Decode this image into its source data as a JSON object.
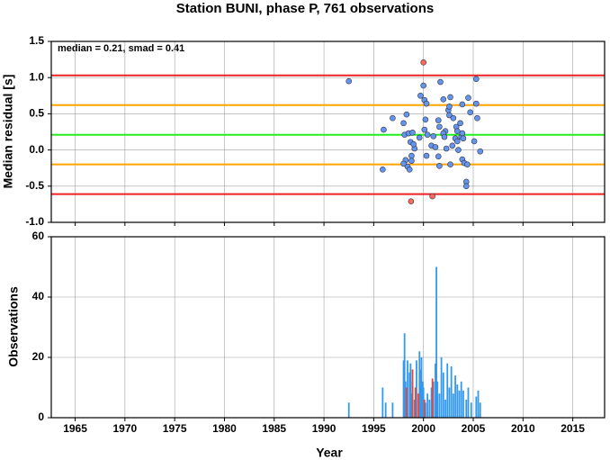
{
  "chart_data": [
    {
      "type": "scatter",
      "title": "Station BUNI, phase P, 761 observations",
      "ylabel": "Median residual [s]",
      "annotation": "median = 0.21, smad = 0.41",
      "xlim": [
        1962.6,
        2018.2
      ],
      "xticks": [
        1965,
        1970,
        1975,
        1980,
        1985,
        1990,
        1995,
        2000,
        2005,
        2010,
        2015
      ],
      "ylim": [
        -1.0,
        1.5
      ],
      "yticks": [
        1.5,
        {
          "value": 1,
          "label": "1.0"
        },
        0.5,
        {
          "value": 0,
          "label": "0.0"
        },
        -0.5,
        {
          "value": -1,
          "label": "-1.0"
        }
      ],
      "grid": true,
      "hlines": [
        {
          "value": 1.03,
          "color": "#ee2222"
        },
        {
          "value": 0.62,
          "color": "#ffa500"
        },
        {
          "value": 0.21,
          "color": "#22ee22"
        },
        {
          "value": -0.2,
          "color": "#ffa500"
        },
        {
          "value": -0.61,
          "color": "#ee2222"
        }
      ],
      "series": [
        {
          "color": "#6495ed",
          "x": [
            1992.5,
            1995.9,
            1996.0,
            1996.9,
            1998.0,
            1998.3,
            1998.1,
            1998.2,
            1998.4,
            1998.0,
            1998.6,
            1998.5,
            1998.9,
            1998.7,
            1999.1,
            1998.8,
            1998.8,
            1999.0,
            1999.6,
            1999.7,
            2000.0,
            2000.1,
            2000.3,
            2000.2,
            2000.1,
            2000.4,
            2000.3,
            2000.8,
            2001.0,
            2001.2,
            2001.6,
            2001.5,
            2001.5,
            2001.6,
            2001.7,
            2002.0,
            2002.2,
            2002.0,
            2002.1,
            2002.3,
            2002.5,
            2002.6,
            2002.7,
            2002.6,
            2002.7,
            2002.9,
            2003.0,
            2003.2,
            2003.3,
            2003.4,
            2003.4,
            2003.5,
            2003.7,
            2003.8,
            2003.9,
            2003.9,
            2003.9,
            2004.0,
            2004.1,
            2004.4,
            2004.3,
            2004.3,
            2004.5,
            2004.7,
            2005.1,
            2005.3,
            2005.3,
            2005.4,
            2005.7
          ],
          "values": [
            0.95,
            -0.27,
            0.28,
            0.44,
            0.37,
            0.49,
            0.21,
            -0.14,
            -0.23,
            -0.19,
            -0.27,
            0.23,
            0.24,
            0.11,
            0.02,
            -0.08,
            -0.15,
            0.08,
            0.17,
            0.75,
            0.89,
            0.69,
            0.64,
            0.42,
            0.28,
            0.21,
            -0.08,
            0.06,
            0.19,
            0.04,
            0.32,
            0.41,
            -0.09,
            -0.22,
            0.94,
            0.7,
            0.26,
            0.23,
            0.18,
            0.02,
            0.55,
            0.6,
            0.73,
            0.48,
            -0.2,
            0.06,
            0.44,
            0.16,
            0.32,
            0.26,
            0.12,
            0.0,
            0.37,
            0.18,
            0.23,
            -0.13,
            0.63,
            0.16,
            -0.18,
            -0.2,
            -0.44,
            -0.5,
            0.72,
            0.52,
            0.12,
            0.98,
            0.64,
            0.44,
            -0.02
          ]
        },
        {
          "color": "#fa6a5a",
          "x": [
            2000.0,
            1998.75,
            2000.9
          ],
          "values": [
            1.21,
            -0.71,
            -0.64
          ]
        }
      ]
    },
    {
      "type": "bar",
      "xlabel": "Year",
      "ylabel": "Observations",
      "xlim": [
        1962.6,
        2018.2
      ],
      "xticks": [
        1965,
        1970,
        1975,
        1980,
        1985,
        1990,
        1995,
        2000,
        2005,
        2010,
        2015
      ],
      "ylim": [
        0,
        60
      ],
      "yticks": [
        0,
        20,
        40,
        60
      ],
      "grid": true,
      "series": [
        {
          "color": "#3399ee",
          "x": [
            1992.5,
            1995.9,
            1996.2,
            1996.9,
            1998.0,
            1998.1,
            1998.2,
            1998.4,
            1998.6,
            1998.7,
            1998.8,
            1998.9,
            1999.1,
            1999.3,
            1999.5,
            1999.6,
            1999.7,
            1999.8,
            1999.9,
            2000.0,
            2000.2,
            2000.4,
            2000.6,
            2000.8,
            2001.0,
            2001.2,
            2001.3,
            2001.4,
            2001.6,
            2001.8,
            2002.0,
            2002.2,
            2002.4,
            2002.6,
            2002.8,
            2003.0,
            2003.2,
            2003.4,
            2003.6,
            2003.8,
            2004.0,
            2004.3,
            2004.5,
            2004.8,
            2005.3,
            2005.5,
            2005.7
          ],
          "values": [
            5,
            10,
            5,
            5,
            19,
            28,
            12,
            19,
            15,
            18,
            8,
            12,
            6,
            19,
            8,
            22,
            16,
            20,
            12,
            10,
            5,
            8,
            6,
            10,
            12,
            18,
            50,
            12,
            8,
            20,
            15,
            6,
            18,
            10,
            17,
            8,
            14,
            11,
            9,
            12,
            9,
            6,
            10,
            5,
            7,
            9,
            5
          ]
        },
        {
          "color": "#ee4433",
          "x": [
            1998.3,
            1998.9,
            1999.2,
            1999.5,
            2000.1,
            2000.9
          ],
          "values": [
            10,
            16,
            10,
            8,
            6,
            13
          ]
        }
      ]
    }
  ]
}
